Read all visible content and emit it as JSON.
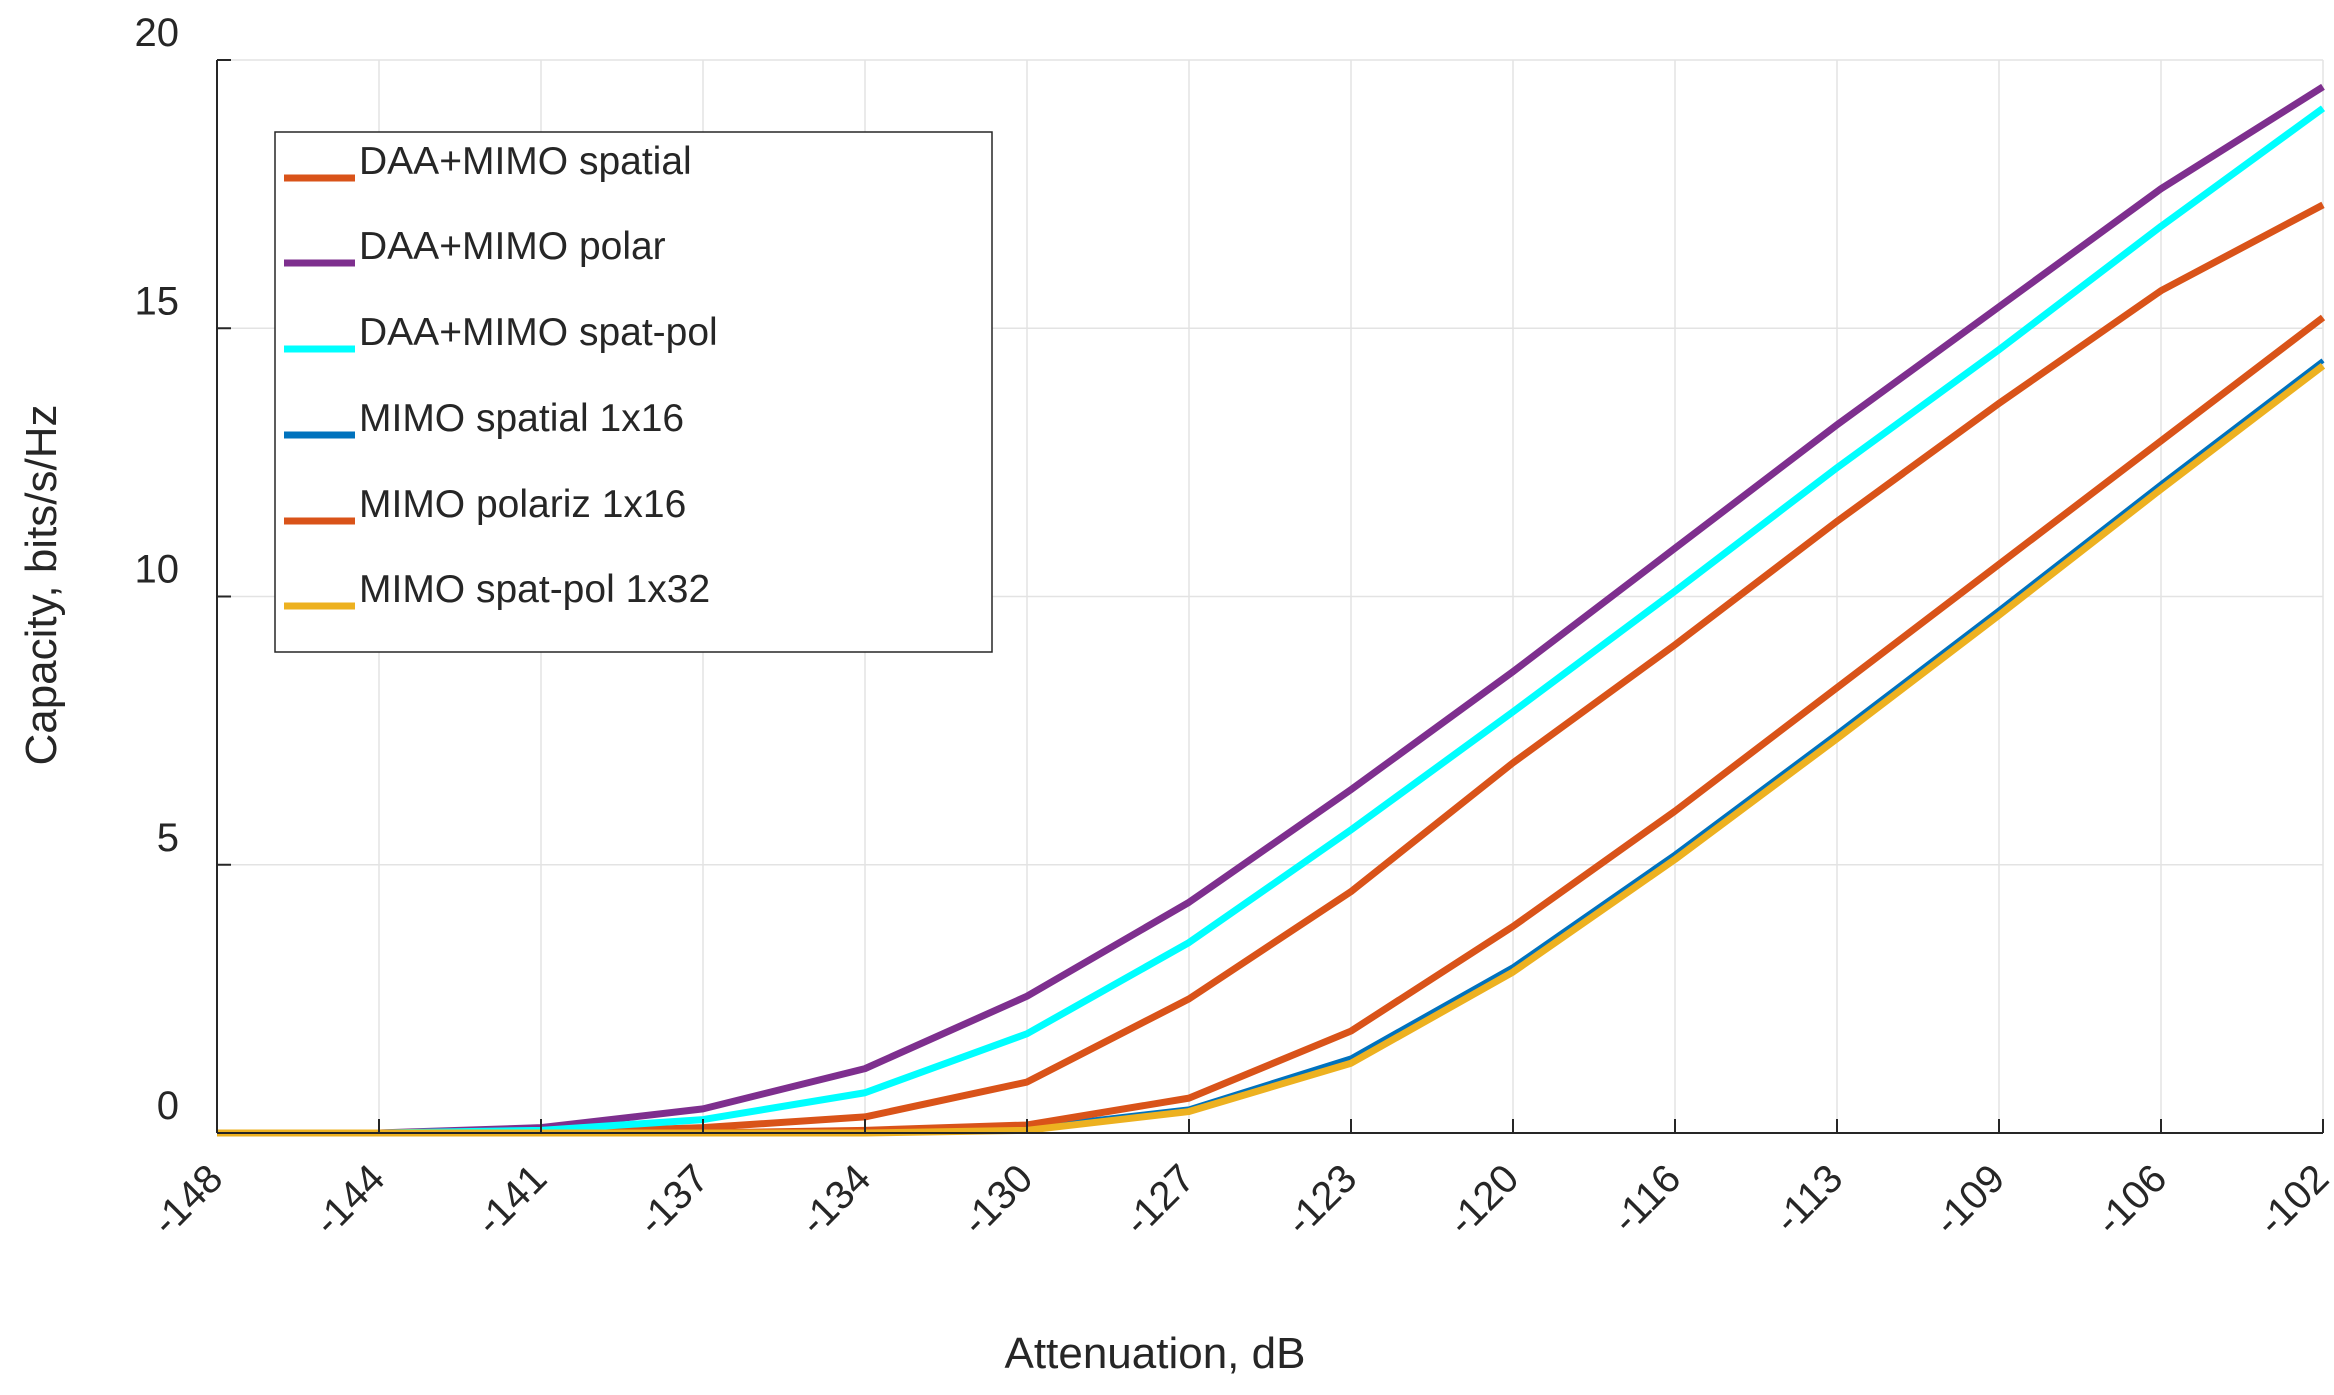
{
  "chart_data": {
    "type": "line",
    "title": "",
    "xlabel": "Attenuation, dB",
    "ylabel": "Capacity, bits/s/Hz",
    "x": [
      -148,
      -144,
      -141,
      -137,
      -134,
      -130,
      -127,
      -123,
      -120,
      -116,
      -113,
      -109,
      -106,
      -102
    ],
    "x_tick_labels": [
      "-148",
      "-144",
      "-141",
      "-137",
      "-134",
      "-130",
      "-127",
      "-123",
      "-120",
      "-116",
      "-113",
      "-109",
      "-106",
      "-102"
    ],
    "ylim": [
      0,
      20
    ],
    "y_ticks": [
      0,
      5,
      10,
      15,
      20
    ],
    "y_tick_labels": [
      "0",
      "5",
      "10",
      "15",
      "20"
    ],
    "grid": true,
    "legend_placement": "top-left",
    "series": [
      {
        "name": "DAA+MIMO spatial",
        "color": "#D95319",
        "values": [
          0,
          0,
          0,
          0.1,
          0.3,
          0.95,
          2.5,
          4.5,
          6.9,
          9.1,
          11.4,
          13.6,
          15.7,
          17.3
        ]
      },
      {
        "name": "DAA+MIMO polar",
        "color": "#7E2F8E",
        "values": [
          0,
          0,
          0.1,
          0.45,
          1.2,
          2.55,
          4.3,
          6.4,
          8.6,
          10.9,
          13.2,
          15.4,
          17.6,
          19.5
        ]
      },
      {
        "name": "DAA+MIMO spat-pol",
        "color": "#00FFFF",
        "values": [
          0,
          0,
          0.05,
          0.25,
          0.75,
          1.85,
          3.55,
          5.65,
          7.85,
          10.1,
          12.4,
          14.6,
          16.9,
          19.1
        ]
      },
      {
        "name": "MIMO spatial 1x16",
        "color": "#0072BD",
        "values": [
          0,
          0,
          0,
          0,
          0,
          0.1,
          0.45,
          1.4,
          3.1,
          5.2,
          7.45,
          9.75,
          12.1,
          14.4
        ]
      },
      {
        "name": "MIMO polariz 1x16",
        "color": "#D95319",
        "values": [
          0,
          0,
          0,
          0,
          0.05,
          0.15,
          0.65,
          1.9,
          3.85,
          6.0,
          8.3,
          10.6,
          12.9,
          15.2
        ]
      },
      {
        "name": "MIMO spat-pol 1x32",
        "color": "#EDB120",
        "values": [
          0,
          0,
          0,
          0,
          0,
          0.05,
          0.4,
          1.3,
          3.0,
          5.1,
          7.35,
          9.65,
          12.0,
          14.3
        ]
      }
    ]
  }
}
